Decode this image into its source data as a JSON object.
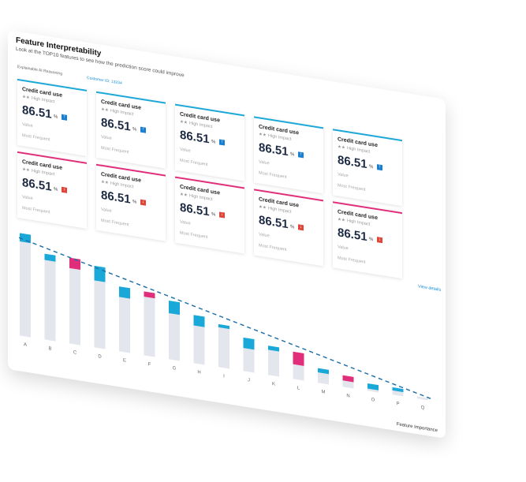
{
  "header": {
    "title": "Feature Interpretability",
    "subtitle": "Look at the TOP10 features to see how the prediction score could improve"
  },
  "tabs": [
    "Explainable AI Reasoning",
    "Customer ID: 13234"
  ],
  "cards": [
    {
      "title": "Credit card use",
      "rating": "★★",
      "impact": "High Impact",
      "value": 86.51,
      "unit": "%",
      "value_label": "Value",
      "frequency": "Most Frequent",
      "trend": "up"
    },
    {
      "title": "Credit card use",
      "rating": "★★",
      "impact": "High Impact",
      "value": 86.51,
      "unit": "%",
      "value_label": "Value",
      "frequency": "Most Frequent",
      "trend": "up"
    },
    {
      "title": "Credit card use",
      "rating": "★★",
      "impact": "High Impact",
      "value": 86.51,
      "unit": "%",
      "value_label": "Value",
      "frequency": "Most Frequent",
      "trend": "up"
    },
    {
      "title": "Credit card use",
      "rating": "★★",
      "impact": "High Impact",
      "value": 86.51,
      "unit": "%",
      "value_label": "Value",
      "frequency": "Most Frequent",
      "trend": "up"
    },
    {
      "title": "Credit card use",
      "rating": "★★",
      "impact": "High Impact",
      "value": 86.51,
      "unit": "%",
      "value_label": "Value",
      "frequency": "Most Frequent",
      "trend": "up"
    },
    {
      "title": "Credit card use",
      "rating": "★★",
      "impact": "High Impact",
      "value": 86.51,
      "unit": "%",
      "value_label": "Value",
      "frequency": "Most Frequent",
      "trend": "down"
    },
    {
      "title": "Credit card use",
      "rating": "★★",
      "impact": "High Impact",
      "value": 86.51,
      "unit": "%",
      "value_label": "Value",
      "frequency": "Most Frequent",
      "trend": "down"
    },
    {
      "title": "Credit card use",
      "rating": "★★",
      "impact": "High Impact",
      "value": 86.51,
      "unit": "%",
      "value_label": "Value",
      "frequency": "Most Frequent",
      "trend": "down"
    },
    {
      "title": "Credit card use",
      "rating": "★★",
      "impact": "High Impact",
      "value": 86.51,
      "unit": "%",
      "value_label": "Value",
      "frequency": "Most Frequent",
      "trend": "down"
    },
    {
      "title": "Credit card use",
      "rating": "★★",
      "impact": "High Impact",
      "value": 86.51,
      "unit": "%",
      "value_label": "Value",
      "frequency": "Most Frequent",
      "trend": "down"
    }
  ],
  "link": "View details",
  "chart_data": {
    "type": "bar",
    "stacked": true,
    "categories": [
      "A",
      "B",
      "C",
      "D",
      "E",
      "F",
      "G",
      "H",
      "I",
      "J",
      "K",
      "L",
      "M",
      "N",
      "O",
      "P",
      "Q"
    ],
    "x_label": "Feature Importance",
    "series": [
      {
        "color": "#e4e6ee",
        "values": [
          90,
          76,
          72,
          64,
          52,
          56,
          44,
          36,
          38,
          22,
          24,
          14,
          10,
          6,
          2,
          4,
          2
        ]
      },
      {
        "colors": [
          "#1aa8d8",
          "#1aa8d8",
          "#e02e7a",
          "#1aa8d8",
          "#1aa8d8",
          "#e02e7a",
          "#1aa8d8",
          "#1aa8d8",
          "#1aa8d8",
          "#1aa8d8",
          "#1aa8d8",
          "#e02e7a",
          "#1aa8d8",
          "#e02e7a",
          "#1aa8d8",
          "#1aa8d8",
          "#1aa8d8"
        ],
        "values": [
          8,
          6,
          10,
          14,
          10,
          5,
          12,
          10,
          3,
          10,
          4,
          12,
          4,
          5,
          5,
          3,
          0
        ]
      }
    ],
    "trend_line": {
      "color": "#1e6fa8",
      "dashed": true
    }
  }
}
